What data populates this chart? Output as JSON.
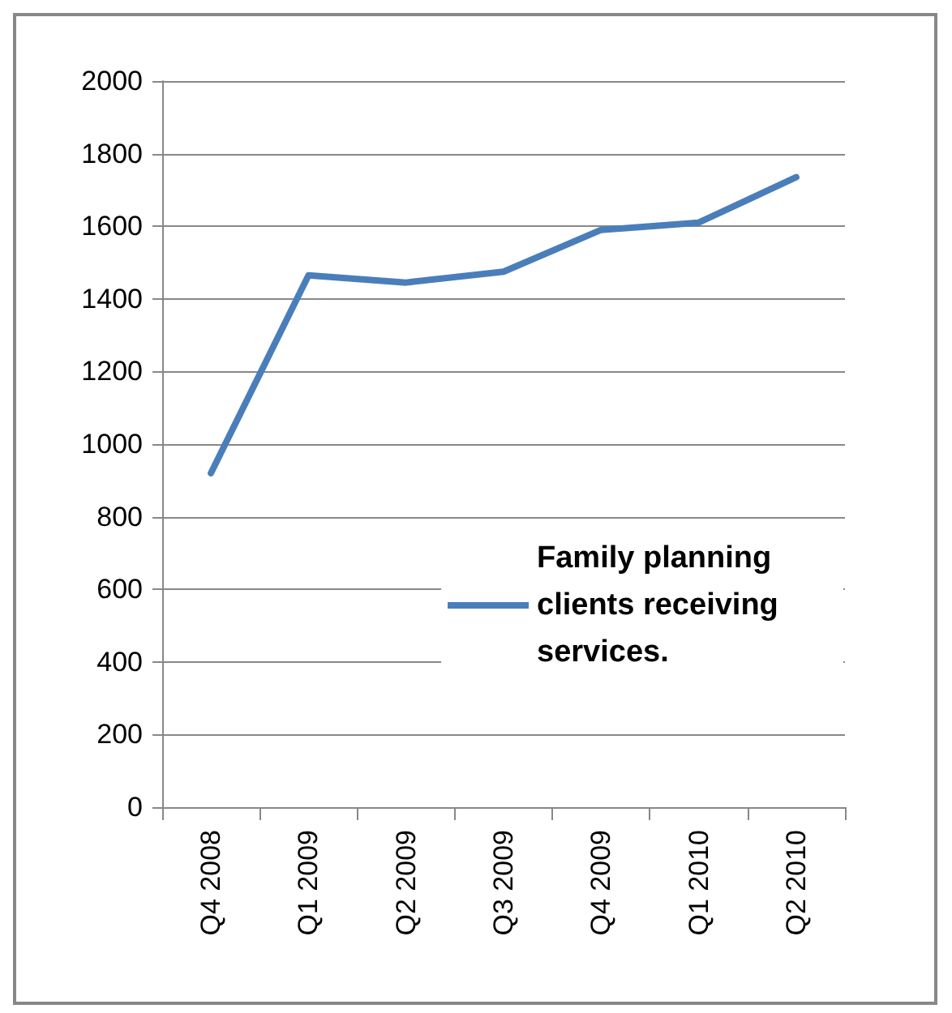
{
  "chart_data": {
    "type": "line",
    "categories": [
      "Q4 2008",
      "Q1 2009",
      "Q2 2009",
      "Q3 2009",
      "Q4 2009",
      "Q1 2010",
      "Q2 2010"
    ],
    "series": [
      {
        "name": "Family planning clients receiving services.",
        "color": "#4a7ebb",
        "values": [
          920,
          1465,
          1445,
          1475,
          1590,
          1610,
          1735
        ]
      }
    ],
    "ylim": [
      0,
      2000
    ],
    "yticks": [
      0,
      200,
      400,
      600,
      800,
      1000,
      1200,
      1400,
      1600,
      1800,
      2000
    ],
    "grid": "y",
    "legend": "right",
    "marker": "none",
    "line_style": "solid"
  }
}
